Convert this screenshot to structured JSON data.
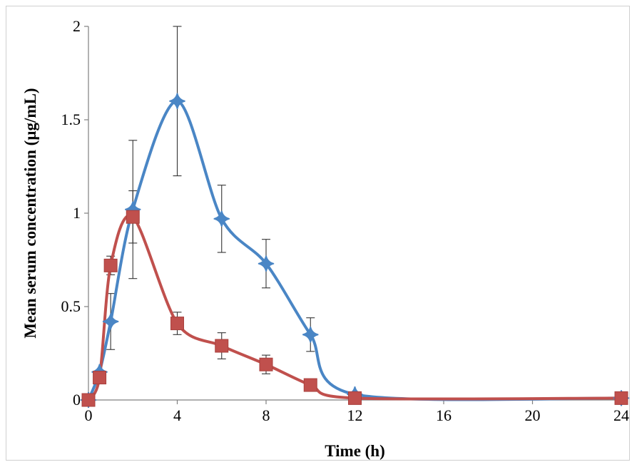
{
  "chart_data": {
    "type": "line",
    "title": "",
    "xlabel": "Time (h)",
    "ylabel": "Mean serum concentration (µg/mL)",
    "xlim": [
      0,
      24
    ],
    "ylim": [
      0,
      2
    ],
    "x_ticks": [
      "0",
      "4",
      "8",
      "12",
      "16",
      "20",
      "24"
    ],
    "y_ticks": [
      "0",
      "0.5",
      "1",
      "1.5",
      "2"
    ],
    "grid": false,
    "legend": "none",
    "smooth": true,
    "series": [
      {
        "marker": "diamond",
        "color": "#4a86c5",
        "x": [
          0,
          0.5,
          1,
          2,
          4,
          6,
          8,
          10,
          12,
          24
        ],
        "y": [
          0,
          0.15,
          0.42,
          1.02,
          1.6,
          0.97,
          0.73,
          0.35,
          0.03,
          0.01
        ],
        "error": [
          0,
          0,
          0.15,
          0.37,
          0.4,
          0.18,
          0.13,
          0.09,
          0,
          0
        ]
      },
      {
        "marker": "square",
        "color": "#c0504d",
        "x": [
          0,
          0.5,
          1,
          2,
          4,
          6,
          8,
          10,
          12,
          24
        ],
        "y": [
          0,
          0.12,
          0.72,
          0.98,
          0.41,
          0.29,
          0.19,
          0.08,
          0.01,
          0.01
        ],
        "error": [
          0,
          0,
          0.05,
          0.14,
          0.06,
          0.07,
          0.05,
          0,
          0,
          0
        ]
      }
    ]
  }
}
